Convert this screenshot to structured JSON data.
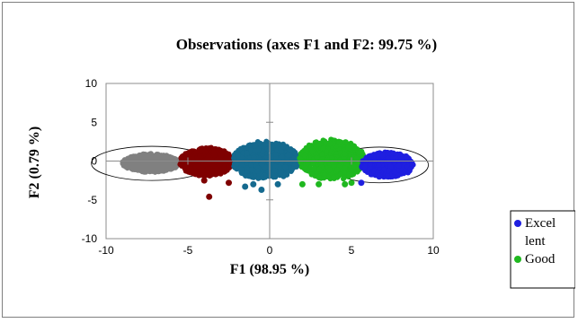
{
  "chart_data": {
    "type": "scatter",
    "title": "Observations (axes F1 and F2: 99.75 %)",
    "xlabel": "F1 (98.95 %)",
    "ylabel": "F2 (0.79 %)",
    "xlim": [
      -10,
      10
    ],
    "ylim": [
      -10,
      10
    ],
    "x_ticks": [
      "-10",
      "-5",
      "0",
      "5",
      "10"
    ],
    "y_ticks": [
      "10",
      "5",
      "0",
      "-5",
      "-10"
    ],
    "grid": false,
    "axes_through_origin": true,
    "legend_position": "right",
    "legend": [
      {
        "label": "Excel\nlent",
        "color": "#1f1fe0"
      },
      {
        "label": "Good",
        "color": "#1fb81f"
      }
    ],
    "series": [
      {
        "color": "#808080",
        "cluster_x_range": [
          -9,
          -5.5
        ],
        "cluster_y_range": [
          -1.5,
          1
        ],
        "outliers": []
      },
      {
        "color": "#7f0000",
        "cluster_x_range": [
          -5.5,
          -2.2
        ],
        "cluster_y_range": [
          -2,
          1.8
        ],
        "outliers": [
          [
            -4.0,
            -2.5
          ],
          [
            -3.7,
            -4.6
          ],
          [
            -2.5,
            -2.8
          ]
        ]
      },
      {
        "color": "#156a8f",
        "cluster_x_range": [
          -2.3,
          1.8
        ],
        "cluster_y_range": [
          -2.5,
          2.6
        ],
        "outliers": [
          [
            -1.5,
            -3.3
          ],
          [
            -0.5,
            -3.7
          ],
          [
            -1.0,
            -3.0
          ],
          [
            0.5,
            -3.0
          ]
        ]
      },
      {
        "color": "#1fb81f",
        "cluster_x_range": [
          1.8,
          5.8
        ],
        "cluster_y_range": [
          -2.5,
          2.9
        ],
        "outliers": [
          [
            2.0,
            -3.0
          ],
          [
            3.0,
            -3.0
          ],
          [
            4.6,
            -3.0
          ],
          [
            5.0,
            -2.8
          ]
        ]
      },
      {
        "color": "#1f1fe0",
        "cluster_x_range": [
          5.6,
          8.8
        ],
        "cluster_y_range": [
          -2.2,
          1.2
        ],
        "outliers": [
          [
            5.6,
            -2.8
          ],
          [
            6.7,
            -2.0
          ]
        ]
      }
    ],
    "ellipses": [
      {
        "center": [
          -7.2,
          -0.3
        ],
        "rx": 3.7,
        "ry": 2.2
      },
      {
        "center": [
          6.7,
          -0.5
        ],
        "rx": 3.0,
        "ry": 2.3
      }
    ]
  }
}
